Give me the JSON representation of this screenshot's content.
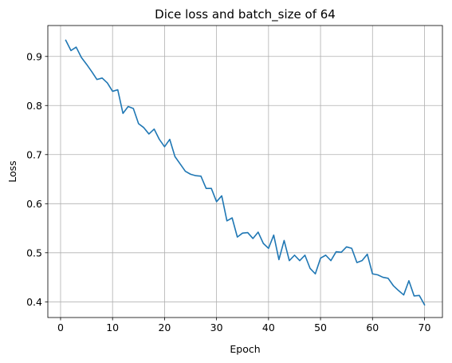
{
  "chart_data": {
    "type": "line",
    "title": "Dice loss and batch_size of 64",
    "xlabel": "Epoch",
    "ylabel": "Loss",
    "xlim": [
      -2.45,
      73.45
    ],
    "ylim": [
      0.368,
      0.963
    ],
    "xticks": [
      0,
      10,
      20,
      30,
      40,
      50,
      60,
      70
    ],
    "yticks": [
      0.4,
      0.5,
      0.6,
      0.7,
      0.8,
      0.9
    ],
    "grid": true,
    "line_color": "#1f77b4",
    "series": [
      {
        "x": [
          1,
          2,
          3,
          4,
          5,
          6,
          7,
          8,
          9,
          10,
          11,
          12,
          13,
          14,
          15,
          16,
          17,
          18,
          19,
          20,
          21,
          22,
          23,
          24,
          25,
          26,
          27,
          28,
          29,
          30,
          31,
          32,
          33,
          34,
          35,
          36,
          37,
          38,
          39,
          40,
          41,
          42,
          43,
          44,
          45,
          46,
          47,
          48,
          49,
          50,
          51,
          52,
          53,
          54,
          55,
          56,
          57,
          58,
          59,
          60,
          61,
          62,
          63,
          64,
          65,
          66,
          67,
          68,
          69,
          70
        ],
        "values": [
          0.933,
          0.912,
          0.919,
          0.898,
          0.884,
          0.869,
          0.853,
          0.856,
          0.846,
          0.829,
          0.832,
          0.784,
          0.798,
          0.794,
          0.763,
          0.755,
          0.742,
          0.752,
          0.731,
          0.716,
          0.731,
          0.696,
          0.681,
          0.666,
          0.66,
          0.657,
          0.656,
          0.631,
          0.631,
          0.604,
          0.616,
          0.565,
          0.571,
          0.532,
          0.54,
          0.541,
          0.529,
          0.542,
          0.519,
          0.509,
          0.536,
          0.486,
          0.525,
          0.484,
          0.495,
          0.484,
          0.495,
          0.468,
          0.457,
          0.489,
          0.495,
          0.484,
          0.502,
          0.501,
          0.512,
          0.509,
          0.48,
          0.484,
          0.497,
          0.457,
          0.455,
          0.45,
          0.448,
          0.433,
          0.423,
          0.414,
          0.443,
          0.412,
          0.413,
          0.394
        ]
      }
    ]
  }
}
